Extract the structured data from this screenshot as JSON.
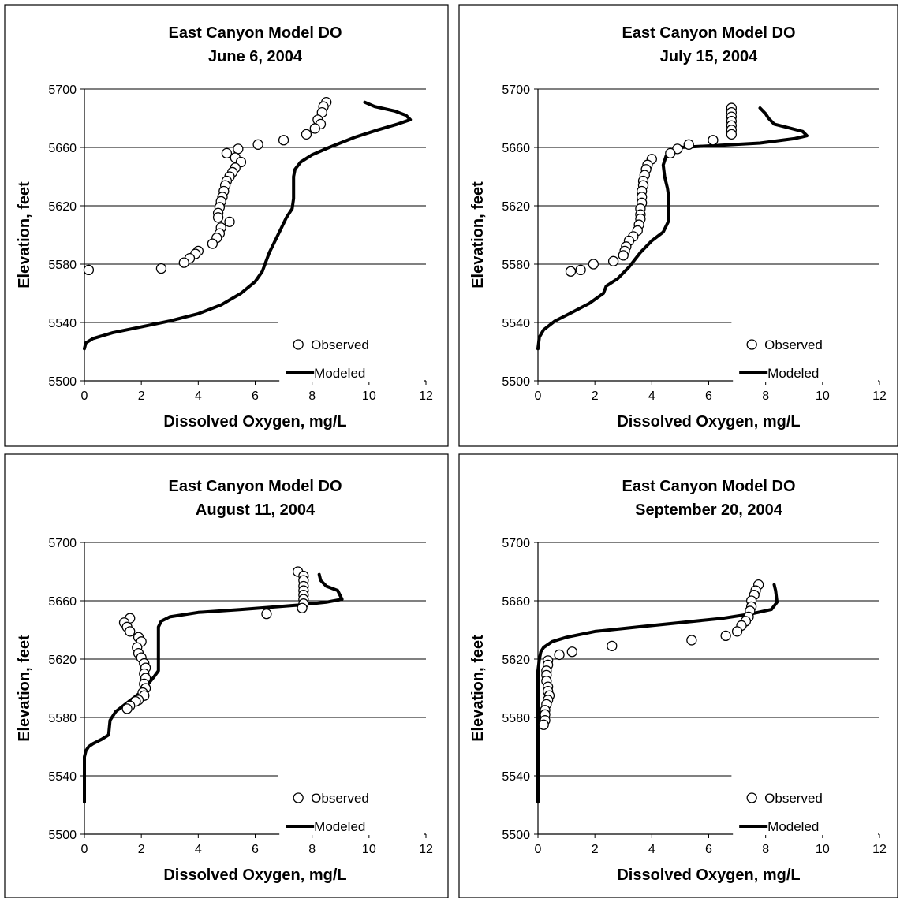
{
  "chart_data": [
    {
      "type": "scatter",
      "title": "East Canyon Model DO",
      "subtitle": "June 6, 2004",
      "xlabel": "Dissolved Oxygen, mg/L",
      "ylabel": "Elevation, feet",
      "xlim": [
        0,
        12
      ],
      "ylim": [
        5500,
        5700
      ],
      "xticks": [
        0,
        2,
        4,
        6,
        8,
        10,
        12
      ],
      "yticks": [
        5500,
        5540,
        5580,
        5620,
        5660,
        5700
      ],
      "grid": "horizontal",
      "legend": "bottom-right",
      "series": [
        {
          "name": "Observed",
          "kind": "markers",
          "points": [
            [
              8.5,
              5691
            ],
            [
              8.4,
              5688
            ],
            [
              8.35,
              5684
            ],
            [
              8.2,
              5679
            ],
            [
              8.3,
              5676
            ],
            [
              8.1,
              5673
            ],
            [
              7.8,
              5669
            ],
            [
              7.0,
              5665
            ],
            [
              6.1,
              5662
            ],
            [
              5.4,
              5659
            ],
            [
              5.0,
              5656
            ],
            [
              5.3,
              5653
            ],
            [
              5.5,
              5650
            ],
            [
              5.3,
              5646
            ],
            [
              5.2,
              5643
            ],
            [
              5.1,
              5640
            ],
            [
              5.0,
              5637
            ],
            [
              4.95,
              5634
            ],
            [
              4.9,
              5630
            ],
            [
              4.85,
              5626
            ],
            [
              4.8,
              5623
            ],
            [
              4.75,
              5619
            ],
            [
              4.7,
              5615
            ],
            [
              4.7,
              5612
            ],
            [
              5.1,
              5609
            ],
            [
              4.8,
              5605
            ],
            [
              4.75,
              5601
            ],
            [
              4.65,
              5598
            ],
            [
              4.5,
              5594
            ],
            [
              4.0,
              5589
            ],
            [
              3.9,
              5587
            ],
            [
              3.7,
              5584
            ],
            [
              3.5,
              5581
            ],
            [
              2.7,
              5577
            ],
            [
              0.15,
              5576
            ]
          ]
        },
        {
          "name": "Modeled",
          "kind": "line",
          "points": [
            [
              9.85,
              5691
            ],
            [
              10.2,
              5688
            ],
            [
              10.9,
              5685
            ],
            [
              11.3,
              5682
            ],
            [
              11.45,
              5679
            ],
            [
              11.0,
              5676
            ],
            [
              10.3,
              5672
            ],
            [
              9.5,
              5667
            ],
            [
              8.6,
              5660
            ],
            [
              8.0,
              5655
            ],
            [
              7.6,
              5650
            ],
            [
              7.4,
              5645
            ],
            [
              7.35,
              5640
            ],
            [
              7.35,
              5625
            ],
            [
              7.3,
              5618
            ],
            [
              7.1,
              5612
            ],
            [
              6.8,
              5600
            ],
            [
              6.5,
              5588
            ],
            [
              6.25,
              5575
            ],
            [
              6.0,
              5568
            ],
            [
              5.5,
              5560
            ],
            [
              4.8,
              5552
            ],
            [
              4.0,
              5546
            ],
            [
              3.0,
              5541
            ],
            [
              2.0,
              5537
            ],
            [
              1.0,
              5533
            ],
            [
              0.3,
              5529
            ],
            [
              0.05,
              5526
            ],
            [
              0.0,
              5522
            ]
          ]
        }
      ]
    },
    {
      "type": "scatter",
      "title": "East Canyon Model DO",
      "subtitle": "July 15, 2004",
      "xlabel": "Dissolved Oxygen, mg/L",
      "ylabel": "Elevation, feet",
      "xlim": [
        0,
        12
      ],
      "ylim": [
        5500,
        5700
      ],
      "xticks": [
        0,
        2,
        4,
        6,
        8,
        10,
        12
      ],
      "yticks": [
        5500,
        5540,
        5580,
        5620,
        5660,
        5700
      ],
      "grid": "horizontal",
      "legend": "bottom-right",
      "series": [
        {
          "name": "Observed",
          "kind": "markers",
          "points": [
            [
              6.8,
              5687
            ],
            [
              6.8,
              5684
            ],
            [
              6.8,
              5681
            ],
            [
              6.8,
              5678
            ],
            [
              6.8,
              5675
            ],
            [
              6.8,
              5672
            ],
            [
              6.8,
              5669
            ],
            [
              6.15,
              5665
            ],
            [
              5.3,
              5662
            ],
            [
              4.9,
              5659
            ],
            [
              4.65,
              5656
            ],
            [
              4.0,
              5652
            ],
            [
              3.85,
              5648
            ],
            [
              3.8,
              5645
            ],
            [
              3.75,
              5641
            ],
            [
              3.7,
              5637
            ],
            [
              3.7,
              5634
            ],
            [
              3.65,
              5630
            ],
            [
              3.65,
              5626
            ],
            [
              3.65,
              5622
            ],
            [
              3.6,
              5618
            ],
            [
              3.6,
              5614
            ],
            [
              3.6,
              5611
            ],
            [
              3.55,
              5607
            ],
            [
              3.5,
              5603
            ],
            [
              3.35,
              5599
            ],
            [
              3.2,
              5596
            ],
            [
              3.1,
              5592
            ],
            [
              3.05,
              5589
            ],
            [
              3.0,
              5586
            ],
            [
              2.65,
              5582
            ],
            [
              1.95,
              5580
            ],
            [
              1.5,
              5576
            ],
            [
              1.15,
              5575
            ]
          ]
        },
        {
          "name": "Modeled",
          "kind": "line",
          "points": [
            [
              7.8,
              5687
            ],
            [
              8.0,
              5683
            ],
            [
              8.1,
              5680
            ],
            [
              8.3,
              5676
            ],
            [
              8.9,
              5673
            ],
            [
              9.3,
              5671
            ],
            [
              9.45,
              5668
            ],
            [
              9.0,
              5666
            ],
            [
              7.8,
              5663
            ],
            [
              6.0,
              5661
            ],
            [
              5.0,
              5660
            ],
            [
              4.7,
              5658
            ],
            [
              4.5,
              5654
            ],
            [
              4.4,
              5648
            ],
            [
              4.45,
              5640
            ],
            [
              4.55,
              5632
            ],
            [
              4.6,
              5625
            ],
            [
              4.6,
              5610
            ],
            [
              4.4,
              5602
            ],
            [
              4.0,
              5596
            ],
            [
              3.6,
              5588
            ],
            [
              3.2,
              5578
            ],
            [
              2.8,
              5570
            ],
            [
              2.4,
              5565
            ],
            [
              2.3,
              5560
            ],
            [
              1.8,
              5553
            ],
            [
              1.2,
              5547
            ],
            [
              0.6,
              5541
            ],
            [
              0.2,
              5535
            ],
            [
              0.05,
              5530
            ],
            [
              0.0,
              5522
            ]
          ]
        }
      ]
    },
    {
      "type": "scatter",
      "title": "East Canyon Model DO",
      "subtitle": "August 11, 2004",
      "xlabel": "Dissolved Oxygen, mg/L",
      "ylabel": "Elevation, feet",
      "xlim": [
        0,
        12
      ],
      "ylim": [
        5500,
        5700
      ],
      "xticks": [
        0,
        2,
        4,
        6,
        8,
        10,
        12
      ],
      "yticks": [
        5500,
        5540,
        5580,
        5620,
        5660,
        5700
      ],
      "grid": "horizontal",
      "legend": "bottom-right",
      "series": [
        {
          "name": "Observed",
          "kind": "markers",
          "points": [
            [
              7.5,
              5680
            ],
            [
              7.7,
              5677
            ],
            [
              7.7,
              5674
            ],
            [
              7.7,
              5670
            ],
            [
              7.7,
              5667
            ],
            [
              7.7,
              5664
            ],
            [
              7.7,
              5661
            ],
            [
              7.7,
              5658
            ],
            [
              7.65,
              5655
            ],
            [
              6.4,
              5651
            ],
            [
              1.6,
              5648
            ],
            [
              1.4,
              5645
            ],
            [
              1.5,
              5642
            ],
            [
              1.6,
              5639
            ],
            [
              1.9,
              5635
            ],
            [
              2.0,
              5632
            ],
            [
              1.85,
              5628
            ],
            [
              1.9,
              5624
            ],
            [
              2.0,
              5621
            ],
            [
              2.1,
              5617
            ],
            [
              2.15,
              5614
            ],
            [
              2.1,
              5610
            ],
            [
              2.15,
              5607
            ],
            [
              2.1,
              5603
            ],
            [
              2.15,
              5600
            ],
            [
              2.05,
              5597
            ],
            [
              2.1,
              5595
            ],
            [
              1.9,
              5592
            ],
            [
              1.8,
              5591
            ],
            [
              1.6,
              5588
            ],
            [
              1.5,
              5586
            ]
          ]
        },
        {
          "name": "Modeled",
          "kind": "line",
          "points": [
            [
              8.25,
              5678
            ],
            [
              8.3,
              5674
            ],
            [
              8.5,
              5670
            ],
            [
              8.9,
              5667
            ],
            [
              9.05,
              5661
            ],
            [
              8.5,
              5659
            ],
            [
              7.5,
              5657
            ],
            [
              5.5,
              5654
            ],
            [
              4.0,
              5652
            ],
            [
              3.0,
              5649
            ],
            [
              2.7,
              5646
            ],
            [
              2.6,
              5642
            ],
            [
              2.6,
              5612
            ],
            [
              2.45,
              5608
            ],
            [
              2.2,
              5602
            ],
            [
              1.9,
              5596
            ],
            [
              1.5,
              5590
            ],
            [
              1.1,
              5584
            ],
            [
              0.9,
              5578
            ],
            [
              0.85,
              5568
            ],
            [
              0.6,
              5565
            ],
            [
              0.3,
              5562
            ],
            [
              0.15,
              5560
            ],
            [
              0.05,
              5557
            ],
            [
              0.0,
              5553
            ],
            [
              0.0,
              5522
            ]
          ]
        }
      ]
    },
    {
      "type": "scatter",
      "title": "East Canyon Model DO",
      "subtitle": "September 20, 2004",
      "xlabel": "Dissolved Oxygen, mg/L",
      "ylabel": "Elevation, feet",
      "xlim": [
        0,
        12
      ],
      "ylim": [
        5500,
        5700
      ],
      "xticks": [
        0,
        2,
        4,
        6,
        8,
        10,
        12
      ],
      "yticks": [
        5500,
        5540,
        5580,
        5620,
        5660,
        5700
      ],
      "grid": "horizontal",
      "legend": "bottom-right",
      "series": [
        {
          "name": "Observed",
          "kind": "markers",
          "points": [
            [
              7.75,
              5671
            ],
            [
              7.65,
              5667
            ],
            [
              7.6,
              5664
            ],
            [
              7.5,
              5660
            ],
            [
              7.5,
              5656
            ],
            [
              7.45,
              5653
            ],
            [
              7.4,
              5649
            ],
            [
              7.3,
              5646
            ],
            [
              7.15,
              5643
            ],
            [
              7.0,
              5639
            ],
            [
              6.6,
              5636
            ],
            [
              5.4,
              5633
            ],
            [
              2.6,
              5629
            ],
            [
              1.2,
              5625
            ],
            [
              0.75,
              5623
            ],
            [
              0.35,
              5619
            ],
            [
              0.35,
              5616
            ],
            [
              0.3,
              5612
            ],
            [
              0.3,
              5609
            ],
            [
              0.3,
              5605
            ],
            [
              0.35,
              5601
            ],
            [
              0.35,
              5598
            ],
            [
              0.4,
              5595
            ],
            [
              0.35,
              5592
            ],
            [
              0.3,
              5589
            ],
            [
              0.25,
              5585
            ],
            [
              0.25,
              5582
            ],
            [
              0.25,
              5578
            ],
            [
              0.2,
              5575
            ]
          ]
        },
        {
          "name": "Modeled",
          "kind": "line",
          "points": [
            [
              8.3,
              5671
            ],
            [
              8.35,
              5667
            ],
            [
              8.4,
              5659
            ],
            [
              8.2,
              5654
            ],
            [
              7.5,
              5651
            ],
            [
              6.5,
              5648
            ],
            [
              5.0,
              5645
            ],
            [
              3.5,
              5642
            ],
            [
              2.0,
              5639
            ],
            [
              1.0,
              5635
            ],
            [
              0.5,
              5632
            ],
            [
              0.2,
              5628
            ],
            [
              0.1,
              5625
            ],
            [
              0.05,
              5620
            ],
            [
              0.0,
              5612
            ],
            [
              0.0,
              5522
            ]
          ]
        }
      ]
    }
  ]
}
